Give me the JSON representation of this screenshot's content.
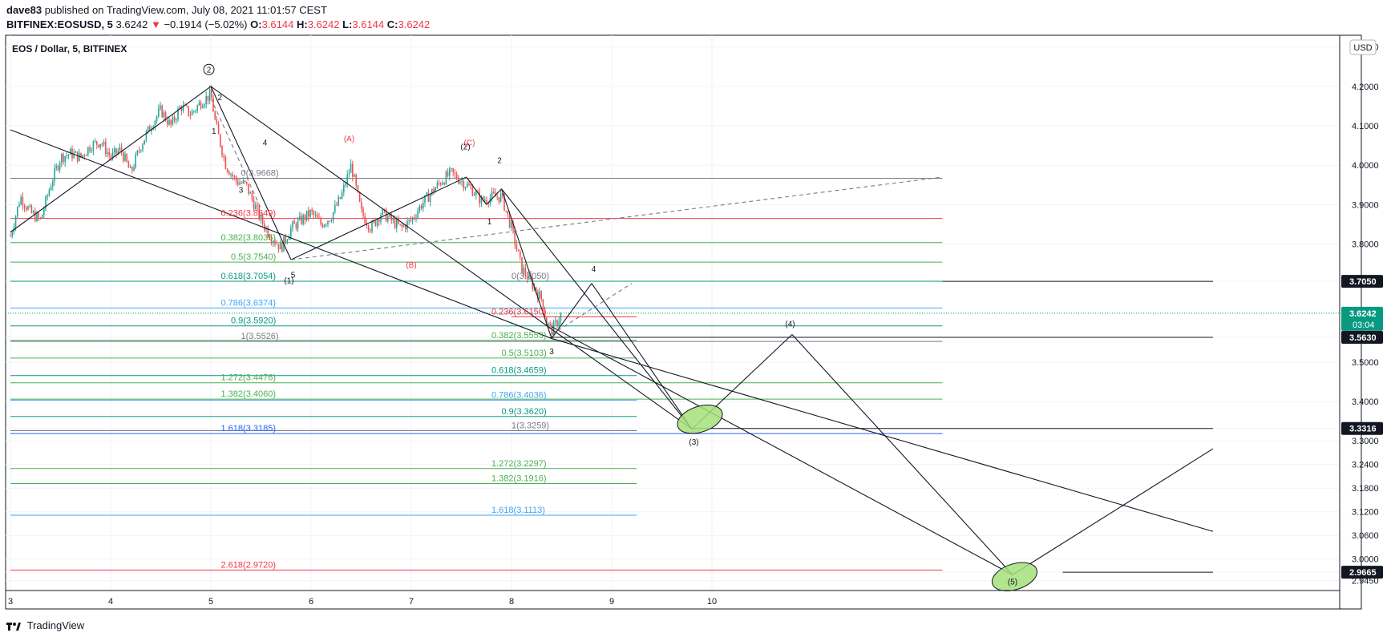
{
  "header": {
    "user": "dave83",
    "published": "published on TradingView.com, July 08, 2021 11:01:57 CEST",
    "symbol": "BITFINEX:EOSUSD, 5",
    "last": "3.6242",
    "change": "−0.1914 (−5.02%)",
    "o_label": "O:",
    "o_value": "3.6144",
    "h_label": "H:",
    "h_value": "3.6242",
    "l_label": "L:",
    "l_value": "3.6144",
    "c_label": "C:",
    "c_value": "3.6242"
  },
  "footer": {
    "brand": "TradingView"
  },
  "colors": {
    "candle_up": "#26a69a",
    "candle_down": "#ef5350",
    "fib_gray": "#787b86",
    "fib_red": "#f23645",
    "fib_green": "#4caf50",
    "fib_teal": "#089981",
    "fib_blue": "#42a5f5",
    "fib_navy": "#2962ff",
    "highlight": "#a5e17a"
  },
  "chart_data": {
    "type": "candlestick",
    "title": "EOS / Dollar, 5, BITFINEX",
    "currency": "USD",
    "ylim": [
      2.92,
      4.33
    ],
    "xlim": [
      3.0,
      15.0
    ],
    "y_ticks": [
      "4.3000",
      "4.2000",
      "4.1000",
      "4.0000",
      "3.9000",
      "3.8000",
      "3.7050",
      "3.6242",
      "3.5630",
      "3.5000",
      "3.4000",
      "3.3316",
      "3.3000",
      "3.2400",
      "3.1800",
      "3.1200",
      "3.0600",
      "3.0000",
      "2.9665",
      "2.9450"
    ],
    "x_ticks": [
      {
        "day": 3,
        "label": "3"
      },
      {
        "day": 4,
        "label": "4"
      },
      {
        "day": 5,
        "label": "5"
      },
      {
        "day": 6,
        "label": "6"
      },
      {
        "day": 7,
        "label": "7"
      },
      {
        "day": 8,
        "label": "8"
      },
      {
        "day": 9,
        "label": "9"
      },
      {
        "day": 10,
        "label": "10"
      }
    ],
    "price_badges": [
      {
        "value": 3.705,
        "label": "3.7050",
        "style": "black"
      },
      {
        "value": 3.6242,
        "label": "3.6242",
        "sub": "03:04",
        "style": "teal"
      },
      {
        "value": 3.563,
        "label": "3.5630",
        "style": "black"
      },
      {
        "value": 3.3316,
        "label": "3.3316",
        "style": "black"
      },
      {
        "value": 2.9665,
        "label": "2.9665",
        "style": "black"
      }
    ],
    "price_path": [
      [
        3.0,
        3.82
      ],
      [
        3.1,
        3.92
      ],
      [
        3.2,
        3.88
      ],
      [
        3.3,
        3.86
      ],
      [
        3.4,
        3.95
      ],
      [
        3.5,
        4.02
      ],
      [
        3.6,
        4.03
      ],
      [
        3.7,
        4.02
      ],
      [
        3.8,
        4.05
      ],
      [
        3.9,
        4.06
      ],
      [
        4.0,
        4.02
      ],
      [
        4.1,
        4.04
      ],
      [
        4.2,
        3.98
      ],
      [
        4.3,
        4.05
      ],
      [
        4.4,
        4.1
      ],
      [
        4.5,
        4.14
      ],
      [
        4.6,
        4.1
      ],
      [
        4.7,
        4.15
      ],
      [
        4.8,
        4.13
      ],
      [
        4.9,
        4.16
      ],
      [
        5.0,
        4.18
      ],
      [
        5.05,
        4.1
      ],
      [
        5.15,
        4.0
      ],
      [
        5.25,
        3.96
      ],
      [
        5.35,
        3.95
      ],
      [
        5.5,
        3.86
      ],
      [
        5.6,
        3.82
      ],
      [
        5.7,
        3.79
      ],
      [
        5.8,
        3.84
      ],
      [
        5.9,
        3.86
      ],
      [
        6.0,
        3.88
      ],
      [
        6.1,
        3.85
      ],
      [
        6.2,
        3.87
      ],
      [
        6.3,
        3.92
      ],
      [
        6.4,
        4.0
      ],
      [
        6.5,
        3.88
      ],
      [
        6.6,
        3.84
      ],
      [
        6.7,
        3.88
      ],
      [
        6.8,
        3.86
      ],
      [
        6.9,
        3.84
      ],
      [
        7.0,
        3.86
      ],
      [
        7.1,
        3.9
      ],
      [
        7.2,
        3.93
      ],
      [
        7.3,
        3.96
      ],
      [
        7.4,
        3.98
      ],
      [
        7.5,
        3.96
      ],
      [
        7.6,
        3.94
      ],
      [
        7.7,
        3.91
      ],
      [
        7.8,
        3.92
      ],
      [
        7.9,
        3.92
      ],
      [
        8.0,
        3.84
      ],
      [
        8.1,
        3.74
      ],
      [
        8.2,
        3.7
      ],
      [
        8.3,
        3.66
      ],
      [
        8.35,
        3.6
      ],
      [
        8.4,
        3.58
      ],
      [
        8.45,
        3.6
      ],
      [
        8.5,
        3.6242
      ]
    ],
    "horizontal_lines": [
      {
        "value": 3.9668,
        "x1": 3.0,
        "x2": 12.3,
        "color": "#787b86"
      },
      {
        "value": 3.8649,
        "x1": 3.0,
        "x2": 12.3,
        "color": "#f23645"
      },
      {
        "value": 3.8035,
        "x1": 3.0,
        "x2": 12.3,
        "color": "#4caf50"
      },
      {
        "value": 3.754,
        "x1": 3.0,
        "x2": 12.3,
        "color": "#4caf50"
      },
      {
        "value": 3.7054,
        "x1": 3.0,
        "x2": 12.3,
        "color": "#089981"
      },
      {
        "value": 3.6374,
        "x1": 3.0,
        "x2": 12.3,
        "color": "#42a5f5"
      },
      {
        "value": 3.592,
        "x1": 3.0,
        "x2": 12.3,
        "color": "#089981"
      },
      {
        "value": 3.5526,
        "x1": 3.0,
        "x2": 12.3,
        "color": "#787b86"
      },
      {
        "value": 3.4476,
        "x1": 3.0,
        "x2": 12.3,
        "color": "#4caf50"
      },
      {
        "value": 3.406,
        "x1": 3.0,
        "x2": 12.3,
        "color": "#4caf50"
      },
      {
        "value": 3.3185,
        "x1": 3.0,
        "x2": 12.3,
        "color": "#2962ff"
      },
      {
        "value": 2.972,
        "x1": 3.0,
        "x2": 12.3,
        "color": "#f23645"
      },
      {
        "value": 3.615,
        "x1": 8.0,
        "x2": 9.25,
        "color": "#f23645"
      },
      {
        "value": 3.5553,
        "x1": 3.0,
        "x2": 9.25,
        "color": "#4caf50"
      },
      {
        "value": 3.5103,
        "x1": 3.0,
        "x2": 9.25,
        "color": "#4caf50"
      },
      {
        "value": 3.4659,
        "x1": 3.0,
        "x2": 9.25,
        "color": "#089981"
      },
      {
        "value": 3.4036,
        "x1": 3.0,
        "x2": 9.25,
        "color": "#42a5f5"
      },
      {
        "value": 3.362,
        "x1": 3.0,
        "x2": 9.25,
        "color": "#089981"
      },
      {
        "value": 3.3259,
        "x1": 3.0,
        "x2": 9.25,
        "color": "#787b86"
      },
      {
        "value": 3.2297,
        "x1": 3.0,
        "x2": 9.25,
        "color": "#4caf50"
      },
      {
        "value": 3.1916,
        "x1": 3.0,
        "x2": 9.25,
        "color": "#4caf50"
      },
      {
        "value": 3.1113,
        "x1": 3.0,
        "x2": 9.25,
        "color": "#42a5f5"
      },
      {
        "value": 3.705,
        "x1": 12.3,
        "x2": 15.0,
        "color": "#131722"
      },
      {
        "value": 3.563,
        "x1": 8.4,
        "x2": 15.0,
        "color": "#131722"
      },
      {
        "value": 3.3316,
        "x1": 9.8,
        "x2": 15.0,
        "color": "#131722"
      },
      {
        "value": 2.9665,
        "x1": 13.5,
        "x2": 15.0,
        "color": "#131722"
      }
    ],
    "fib_labels": [
      {
        "text": "0(3.9668)",
        "x": 5.3,
        "y": 3.9668,
        "color": "#787b86"
      },
      {
        "text": "0.236(3.8649)",
        "x": 5.1,
        "y": 3.8649,
        "color": "#f23645"
      },
      {
        "text": "0.382(3.8035)",
        "x": 5.1,
        "y": 3.8035,
        "color": "#4caf50"
      },
      {
        "text": "0.5(3.7540)",
        "x": 5.2,
        "y": 3.754,
        "color": "#4caf50"
      },
      {
        "text": "0.618(3.7054)",
        "x": 5.1,
        "y": 3.7054,
        "color": "#089981"
      },
      {
        "text": "0.786(3.6374)",
        "x": 5.1,
        "y": 3.6374,
        "color": "#42a5f5"
      },
      {
        "text": "0.9(3.5920)",
        "x": 5.2,
        "y": 3.592,
        "color": "#089981"
      },
      {
        "text": "1(3.5526)",
        "x": 5.3,
        "y": 3.5526,
        "color": "#787b86"
      },
      {
        "text": "1.272(3.4476)",
        "x": 5.1,
        "y": 3.4476,
        "color": "#4caf50"
      },
      {
        "text": "1.382(3.4060)",
        "x": 5.1,
        "y": 3.406,
        "color": "#4caf50"
      },
      {
        "text": "1.618(3.3185)",
        "x": 5.1,
        "y": 3.3185,
        "color": "#2962ff"
      },
      {
        "text": "2.618(2.9720)",
        "x": 5.1,
        "y": 2.972,
        "color": "#f23645"
      },
      {
        "text": "0(3.7050)",
        "x": 8.0,
        "y": 3.705,
        "color": "#787b86"
      },
      {
        "text": "0.236(3.6150)",
        "x": 7.8,
        "y": 3.615,
        "color": "#f23645"
      },
      {
        "text": "0.382(3.5553)",
        "x": 7.8,
        "y": 3.5553,
        "color": "#4caf50"
      },
      {
        "text": "0.5(3.5103)",
        "x": 7.9,
        "y": 3.5103,
        "color": "#4caf50"
      },
      {
        "text": "0.618(3.4659)",
        "x": 7.8,
        "y": 3.4659,
        "color": "#089981"
      },
      {
        "text": "0.786(3.4036)",
        "x": 7.8,
        "y": 3.4036,
        "color": "#42a5f5"
      },
      {
        "text": "0.9(3.3620)",
        "x": 7.9,
        "y": 3.362,
        "color": "#089981"
      },
      {
        "text": "1(3.3259)",
        "x": 8.0,
        "y": 3.3259,
        "color": "#787b86"
      },
      {
        "text": "1.272(3.2297)",
        "x": 7.8,
        "y": 3.2297,
        "color": "#4caf50"
      },
      {
        "text": "1.382(3.1916)",
        "x": 7.8,
        "y": 3.1916,
        "color": "#4caf50"
      },
      {
        "text": "1.618(3.1113)",
        "x": 7.8,
        "y": 3.1113,
        "color": "#42a5f5"
      }
    ],
    "trendlines": [
      {
        "from": [
          3.0,
          3.83
        ],
        "to": [
          5.0,
          4.2
        ],
        "color": "#131722"
      },
      {
        "from": [
          5.0,
          4.2
        ],
        "to": [
          5.8,
          3.76
        ],
        "color": "#131722"
      },
      {
        "from": [
          3.0,
          4.09
        ],
        "to": [
          8.4,
          3.56
        ],
        "color": "#131722"
      },
      {
        "from": [
          5.0,
          4.2
        ],
        "to": [
          9.8,
          3.33
        ],
        "color": "#131722"
      },
      {
        "from": [
          5.8,
          3.76
        ],
        "to": [
          7.55,
          3.97
        ],
        "color": "#131722"
      },
      {
        "from": [
          7.55,
          3.97
        ],
        "to": [
          7.75,
          3.9
        ],
        "color": "#131722"
      },
      {
        "from": [
          7.75,
          3.9
        ],
        "to": [
          7.9,
          3.94
        ],
        "color": "#131722"
      },
      {
        "from": [
          7.9,
          3.94
        ],
        "to": [
          8.4,
          3.56
        ],
        "color": "#131722"
      },
      {
        "from": [
          8.4,
          3.56
        ],
        "to": [
          8.8,
          3.7
        ],
        "color": "#131722"
      },
      {
        "from": [
          8.8,
          3.7
        ],
        "to": [
          9.8,
          3.33
        ],
        "color": "#131722"
      },
      {
        "from": [
          7.9,
          3.94
        ],
        "to": [
          9.8,
          3.33
        ],
        "color": "#131722"
      },
      {
        "from": [
          9.8,
          3.33
        ],
        "to": [
          10.8,
          3.57
        ],
        "color": "#131722"
      },
      {
        "from": [
          10.8,
          3.57
        ],
        "to": [
          13.0,
          2.96
        ],
        "color": "#131722"
      },
      {
        "from": [
          8.4,
          3.56
        ],
        "to": [
          15.0,
          3.07
        ],
        "color": "#131722"
      },
      {
        "from": [
          8.4,
          3.59
        ],
        "to": [
          13.0,
          2.96
        ],
        "color": "#131722"
      },
      {
        "from": [
          13.0,
          2.96
        ],
        "to": [
          15.0,
          3.28
        ],
        "color": "#131722"
      },
      {
        "from": [
          5.8,
          3.76
        ],
        "to": [
          12.3,
          3.97
        ],
        "color": "#787b86",
        "dash": true
      },
      {
        "from": [
          5.0,
          4.17
        ],
        "to": [
          5.5,
          3.89
        ],
        "color": "#787b86",
        "dash": true
      },
      {
        "from": [
          8.4,
          3.57
        ],
        "to": [
          9.2,
          3.7
        ],
        "color": "#787b86",
        "dash": true
      }
    ],
    "wave_labels": [
      {
        "text": "2",
        "x": 4.98,
        "y": 4.235,
        "circled": true,
        "color": "#131722"
      },
      {
        "text": "2",
        "x": 5.09,
        "y": 4.165,
        "color": "#131722"
      },
      {
        "text": "1",
        "x": 5.03,
        "y": 4.08,
        "color": "#131722"
      },
      {
        "text": "3",
        "x": 5.3,
        "y": 3.93,
        "color": "#131722"
      },
      {
        "text": "4",
        "x": 5.54,
        "y": 4.05,
        "color": "#131722"
      },
      {
        "text": "5",
        "x": 5.82,
        "y": 3.715,
        "color": "#131722"
      },
      {
        "text": "(1)",
        "x": 5.78,
        "y": 3.7,
        "color": "#131722"
      },
      {
        "text": "(A)",
        "x": 6.38,
        "y": 4.06,
        "color": "#f23645"
      },
      {
        "text": "(B)",
        "x": 7.0,
        "y": 3.74,
        "color": "#f23645"
      },
      {
        "text": "(C)",
        "x": 7.58,
        "y": 4.05,
        "color": "#f23645"
      },
      {
        "text": "(2)",
        "x": 7.54,
        "y": 4.04,
        "color": "#131722"
      },
      {
        "text": "2",
        "x": 7.88,
        "y": 4.005,
        "color": "#131722"
      },
      {
        "text": "1",
        "x": 7.78,
        "y": 3.85,
        "color": "#131722"
      },
      {
        "text": "3",
        "x": 8.4,
        "y": 3.52,
        "color": "#131722"
      },
      {
        "text": "4",
        "x": 8.82,
        "y": 3.73,
        "color": "#131722"
      },
      {
        "text": "(3)",
        "x": 9.82,
        "y": 3.29,
        "color": "#131722"
      },
      {
        "text": "(4)",
        "x": 10.78,
        "y": 3.59,
        "color": "#131722"
      },
      {
        "text": "(5)",
        "x": 13.0,
        "y": 2.935,
        "color": "#131722"
      }
    ],
    "highlight_ellipses": [
      {
        "cx": 9.88,
        "cy": 3.355,
        "color": "#a5e17a"
      },
      {
        "cx": 13.02,
        "cy": 2.955,
        "color": "#a5e17a"
      }
    ]
  }
}
